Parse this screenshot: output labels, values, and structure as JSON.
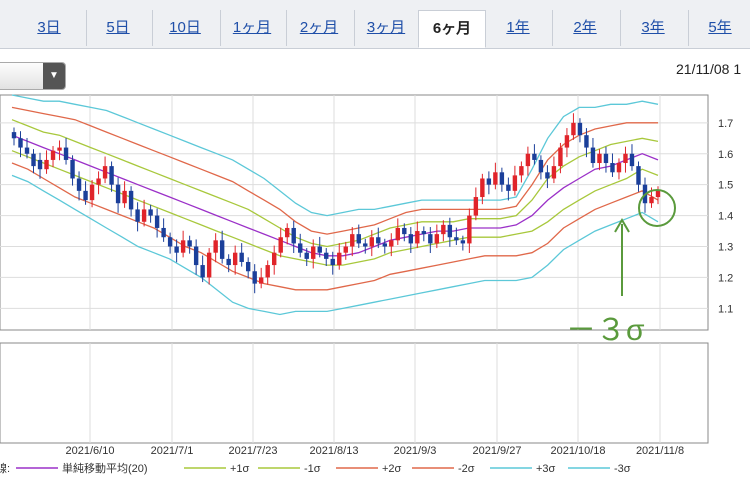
{
  "tabs": [
    {
      "label": "3日",
      "active": false
    },
    {
      "label": "5日",
      "active": false
    },
    {
      "label": "10日",
      "active": false
    },
    {
      "label": "1ヶ月",
      "active": false
    },
    {
      "label": "2ヶ月",
      "active": false
    },
    {
      "label": "3ヶ月",
      "active": false
    },
    {
      "label": "6ヶ月",
      "active": true
    },
    {
      "label": "1年",
      "active": false
    },
    {
      "label": "2年",
      "active": false
    },
    {
      "label": "3年",
      "active": false
    },
    {
      "label": "5年",
      "active": false
    }
  ],
  "date_label": "21/11/08 1",
  "dropdown_icon": "caret-down-icon",
  "annotation": {
    "text": "－３σ",
    "color": "#5a9a3c"
  },
  "chart_data": {
    "type": "candlestick",
    "x_tick_labels": [
      "2021/6/10",
      "2021/7/1",
      "2021/7/23",
      "2021/8/13",
      "2021/9/3",
      "2021/9/27",
      "2021/10/18",
      "2021/11/8"
    ],
    "y_tick_labels": [
      "1.1",
      "1.2",
      "1.3",
      "1.4",
      "1.5",
      "1.6",
      "1.7"
    ],
    "ylim": [
      1.03,
      1.79
    ],
    "grid": true,
    "up_color": "#e0242a",
    "down_color": "#1b3f9a",
    "legend_prefix": "線:",
    "legend": [
      {
        "label": "単純移動平均(20)",
        "color": "#9b30c8"
      },
      {
        "label": "+1σ",
        "color": "#a8c83c"
      },
      {
        "label": "-1σ",
        "color": "#a8c83c"
      },
      {
        "label": "+2σ",
        "color": "#e0684a"
      },
      {
        "label": "-2σ",
        "color": "#e0684a"
      },
      {
        "label": "+3σ",
        "color": "#5cc8d8"
      },
      {
        "label": "-3σ",
        "color": "#5cc8d8"
      }
    ],
    "sma20": [
      1.66,
      1.64,
      1.62,
      1.6,
      1.58,
      1.56,
      1.54,
      1.52,
      1.5,
      1.48,
      1.46,
      1.44,
      1.42,
      1.4,
      1.38,
      1.36,
      1.34,
      1.32,
      1.3,
      1.28,
      1.27,
      1.27,
      1.28,
      1.3,
      1.32,
      1.33,
      1.34,
      1.35,
      1.35,
      1.36,
      1.36,
      1.36,
      1.37,
      1.4,
      1.45,
      1.49,
      1.52,
      1.55,
      1.56,
      1.58,
      1.6,
      1.58
    ],
    "bands": {
      "plus1": [
        1.71,
        1.69,
        1.67,
        1.66,
        1.64,
        1.62,
        1.6,
        1.58,
        1.56,
        1.54,
        1.52,
        1.5,
        1.48,
        1.46,
        1.44,
        1.42,
        1.39,
        1.36,
        1.33,
        1.31,
        1.3,
        1.31,
        1.32,
        1.34,
        1.36,
        1.37,
        1.38,
        1.38,
        1.38,
        1.39,
        1.39,
        1.39,
        1.4,
        1.45,
        1.52,
        1.56,
        1.59,
        1.61,
        1.63,
        1.64,
        1.65,
        1.64
      ],
      "minus1": [
        1.61,
        1.59,
        1.57,
        1.55,
        1.53,
        1.51,
        1.49,
        1.47,
        1.45,
        1.43,
        1.41,
        1.39,
        1.37,
        1.35,
        1.33,
        1.31,
        1.29,
        1.27,
        1.26,
        1.25,
        1.24,
        1.24,
        1.25,
        1.26,
        1.28,
        1.29,
        1.3,
        1.31,
        1.32,
        1.33,
        1.33,
        1.33,
        1.34,
        1.35,
        1.38,
        1.42,
        1.45,
        1.48,
        1.5,
        1.52,
        1.55,
        1.53
      ],
      "plus2": [
        1.75,
        1.74,
        1.73,
        1.72,
        1.71,
        1.69,
        1.67,
        1.65,
        1.63,
        1.61,
        1.59,
        1.57,
        1.55,
        1.53,
        1.51,
        1.48,
        1.45,
        1.42,
        1.38,
        1.35,
        1.34,
        1.35,
        1.36,
        1.37,
        1.39,
        1.41,
        1.42,
        1.42,
        1.42,
        1.42,
        1.42,
        1.42,
        1.43,
        1.5,
        1.58,
        1.63,
        1.66,
        1.68,
        1.69,
        1.7,
        1.7,
        1.7
      ],
      "minus2": [
        1.57,
        1.55,
        1.52,
        1.49,
        1.46,
        1.44,
        1.42,
        1.4,
        1.38,
        1.36,
        1.33,
        1.3,
        1.28,
        1.25,
        1.22,
        1.2,
        1.18,
        1.17,
        1.16,
        1.16,
        1.16,
        1.17,
        1.18,
        1.19,
        1.21,
        1.22,
        1.23,
        1.24,
        1.25,
        1.26,
        1.27,
        1.27,
        1.27,
        1.28,
        1.31,
        1.36,
        1.39,
        1.42,
        1.44,
        1.46,
        1.48,
        1.45
      ],
      "plus3": [
        1.79,
        1.78,
        1.77,
        1.77,
        1.76,
        1.75,
        1.74,
        1.72,
        1.7,
        1.68,
        1.66,
        1.64,
        1.62,
        1.6,
        1.58,
        1.55,
        1.52,
        1.48,
        1.44,
        1.41,
        1.4,
        1.41,
        1.42,
        1.42,
        1.43,
        1.44,
        1.45,
        1.45,
        1.45,
        1.45,
        1.45,
        1.45,
        1.46,
        1.55,
        1.65,
        1.72,
        1.75,
        1.75,
        1.76,
        1.76,
        1.77,
        1.76
      ],
      "minus3": [
        1.53,
        1.51,
        1.48,
        1.45,
        1.42,
        1.39,
        1.36,
        1.33,
        1.3,
        1.28,
        1.26,
        1.23,
        1.2,
        1.16,
        1.12,
        1.1,
        1.09,
        1.08,
        1.09,
        1.09,
        1.09,
        1.1,
        1.11,
        1.12,
        1.13,
        1.14,
        1.15,
        1.16,
        1.17,
        1.18,
        1.19,
        1.19,
        1.19,
        1.2,
        1.24,
        1.29,
        1.32,
        1.35,
        1.37,
        1.39,
        1.41,
        1.38
      ]
    },
    "candles": [
      [
        1.67,
        1.65
      ],
      [
        1.65,
        1.62
      ],
      [
        1.62,
        1.6
      ],
      [
        1.6,
        1.56
      ],
      [
        1.58,
        1.55
      ],
      [
        1.55,
        1.58
      ],
      [
        1.58,
        1.61
      ],
      [
        1.61,
        1.62
      ],
      [
        1.62,
        1.58
      ],
      [
        1.58,
        1.52
      ],
      [
        1.52,
        1.48
      ],
      [
        1.48,
        1.45
      ],
      [
        1.45,
        1.5
      ],
      [
        1.5,
        1.52
      ],
      [
        1.52,
        1.56
      ],
      [
        1.56,
        1.5
      ],
      [
        1.5,
        1.44
      ],
      [
        1.44,
        1.48
      ],
      [
        1.48,
        1.42
      ],
      [
        1.42,
        1.38
      ],
      [
        1.38,
        1.42
      ],
      [
        1.42,
        1.4
      ],
      [
        1.4,
        1.36
      ],
      [
        1.36,
        1.33
      ],
      [
        1.33,
        1.3
      ],
      [
        1.3,
        1.28
      ],
      [
        1.28,
        1.32
      ],
      [
        1.32,
        1.3
      ],
      [
        1.3,
        1.24
      ],
      [
        1.24,
        1.2
      ],
      [
        1.2,
        1.28
      ],
      [
        1.28,
        1.32
      ],
      [
        1.32,
        1.26
      ],
      [
        1.26,
        1.24
      ],
      [
        1.24,
        1.28
      ],
      [
        1.28,
        1.25
      ],
      [
        1.25,
        1.22
      ],
      [
        1.22,
        1.18
      ],
      [
        1.18,
        1.2
      ],
      [
        1.2,
        1.24
      ],
      [
        1.24,
        1.28
      ],
      [
        1.28,
        1.33
      ],
      [
        1.33,
        1.36
      ],
      [
        1.36,
        1.31
      ],
      [
        1.31,
        1.28
      ],
      [
        1.28,
        1.26
      ],
      [
        1.26,
        1.3
      ],
      [
        1.3,
        1.28
      ],
      [
        1.28,
        1.26
      ],
      [
        1.26,
        1.24
      ],
      [
        1.24,
        1.28
      ],
      [
        1.28,
        1.3
      ],
      [
        1.3,
        1.34
      ],
      [
        1.34,
        1.31
      ],
      [
        1.31,
        1.3
      ],
      [
        1.3,
        1.33
      ],
      [
        1.33,
        1.31
      ],
      [
        1.31,
        1.3
      ],
      [
        1.3,
        1.32
      ],
      [
        1.32,
        1.36
      ],
      [
        1.36,
        1.34
      ],
      [
        1.34,
        1.31
      ],
      [
        1.31,
        1.35
      ],
      [
        1.35,
        1.34
      ],
      [
        1.34,
        1.31
      ],
      [
        1.31,
        1.34
      ],
      [
        1.34,
        1.37
      ],
      [
        1.37,
        1.33
      ],
      [
        1.33,
        1.32
      ],
      [
        1.32,
        1.31
      ],
      [
        1.31,
        1.4
      ],
      [
        1.4,
        1.46
      ],
      [
        1.46,
        1.52
      ],
      [
        1.52,
        1.5
      ],
      [
        1.5,
        1.54
      ],
      [
        1.54,
        1.5
      ],
      [
        1.5,
        1.48
      ],
      [
        1.48,
        1.53
      ],
      [
        1.53,
        1.56
      ],
      [
        1.56,
        1.6
      ],
      [
        1.6,
        1.58
      ],
      [
        1.58,
        1.54
      ],
      [
        1.54,
        1.52
      ],
      [
        1.52,
        1.56
      ],
      [
        1.56,
        1.62
      ],
      [
        1.62,
        1.66
      ],
      [
        1.66,
        1.7
      ],
      [
        1.7,
        1.66
      ],
      [
        1.66,
        1.62
      ],
      [
        1.62,
        1.57
      ],
      [
        1.57,
        1.6
      ],
      [
        1.6,
        1.57
      ],
      [
        1.57,
        1.54
      ],
      [
        1.54,
        1.57
      ],
      [
        1.57,
        1.6
      ],
      [
        1.6,
        1.56
      ],
      [
        1.56,
        1.5
      ],
      [
        1.5,
        1.44
      ],
      [
        1.44,
        1.46
      ],
      [
        1.46,
        1.48
      ]
    ]
  }
}
